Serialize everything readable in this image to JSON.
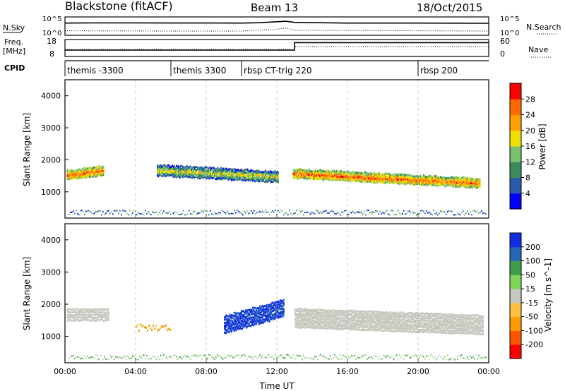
{
  "header": {
    "station": "Blackstone (fitACF)",
    "beam": "Beam 13",
    "date": "18/Oct/2015"
  },
  "noise_panel": {
    "left_label": "N.Sky",
    "right_label": "N.Search",
    "left_ticks": [
      "10^5",
      "10^0"
    ],
    "right_ticks": [
      "10^5",
      "10^0"
    ]
  },
  "freq_panel": {
    "left_label_1": "Freq.",
    "left_label_2": "[MHz]",
    "right_label": "Nave",
    "left_ticks": [
      "18",
      "8"
    ],
    "right_ticks": [
      "60",
      "0"
    ]
  },
  "cpid_panel": {
    "label": "CPID",
    "segments": [
      {
        "name": "themis -3300",
        "start_hour": 0
      },
      {
        "name": "themis 3300",
        "start_hour": 6
      },
      {
        "name": "rbsp CT-trig 220",
        "start_hour": 10
      },
      {
        "name": "rbsp 200",
        "start_hour": 20
      }
    ]
  },
  "power_colorbar": {
    "label": "Power [dB]",
    "ticks": [
      "4",
      "8",
      "12",
      "16",
      "20",
      "24",
      "28"
    ],
    "colors": [
      "#0000ff",
      "#2a5caa",
      "#3a8a5c",
      "#7ac070",
      "#f0e000",
      "#ffa000",
      "#ff6a00",
      "#ff0000"
    ]
  },
  "velocity_colorbar": {
    "label": "Velocity [m s^-1]",
    "ticks": [
      "200",
      "100",
      "50",
      "15",
      "-15",
      "-50",
      "-100",
      "-200"
    ],
    "colors": [
      "#1030e0",
      "#2866b8",
      "#3d9f4a",
      "#7fd657",
      "#c8c8c0",
      "#ffc040",
      "#ff9a00",
      "#ff5500",
      "#ff0000"
    ]
  },
  "axes": {
    "ylabel": "Slant Range [km]",
    "y_ticks": [
      "1000",
      "2000",
      "3000",
      "4000"
    ],
    "x_ticks": [
      "00:00",
      "04:00",
      "08:00",
      "12:00",
      "16:00",
      "20:00",
      "00:00"
    ],
    "xlabel": "Time UT"
  },
  "chart_data": [
    {
      "type": "line",
      "name": "noise",
      "x_unit": "hours UT",
      "series": [
        {
          "name": "N.Sky",
          "x": [
            0,
            2,
            4,
            6,
            8,
            10,
            11,
            12,
            12.5,
            13,
            16,
            20,
            24
          ],
          "values": [
            3000,
            3500,
            3500,
            3200,
            3200,
            3000,
            4000,
            8000,
            12000,
            5000,
            3000,
            3000,
            2500
          ]
        },
        {
          "name": "N.Search",
          "x": [
            0,
            6,
            10,
            12,
            12.5,
            13,
            20,
            24
          ],
          "values": [
            10,
            8,
            8,
            30,
            80,
            15,
            10,
            8
          ]
        }
      ]
    },
    {
      "type": "line",
      "name": "frequency",
      "series": [
        {
          "name": "Freq.",
          "x": [
            0,
            13,
            13,
            24
          ],
          "values": [
            11.5,
            11.5,
            16.8,
            16.8
          ]
        },
        {
          "name": "Nave",
          "x": [
            0,
            13,
            13,
            24
          ],
          "values": [
            24,
            24,
            36,
            36
          ]
        }
      ]
    },
    {
      "type": "heatmap",
      "name": "power",
      "x": "time UT (00:00-24:00)",
      "y": "slant range km",
      "ylim": [
        180,
        4500
      ],
      "bands": [
        {
          "x_start": 0.1,
          "x_end": 2.2,
          "range_center": [
            1550,
            1700
          ],
          "thickness": 250,
          "level_db": 24
        },
        {
          "x_start": 5.2,
          "x_end": 12.1,
          "range_center": [
            1700,
            1500
          ],
          "thickness": 300,
          "level_db": 16
        },
        {
          "x_start": 12.9,
          "x_end": 23.5,
          "range_center": [
            1600,
            1300
          ],
          "thickness": 250,
          "level_db": 22
        }
      ]
    },
    {
      "type": "heatmap",
      "name": "velocity",
      "x": "time UT (00:00-24:00)",
      "y": "slant range km",
      "ylim": [
        180,
        4500
      ],
      "notes": "mostly -15..15 m/s grey after 13:00 UT; +100..200 m/s blue 09:00-12:30 UT"
    }
  ]
}
